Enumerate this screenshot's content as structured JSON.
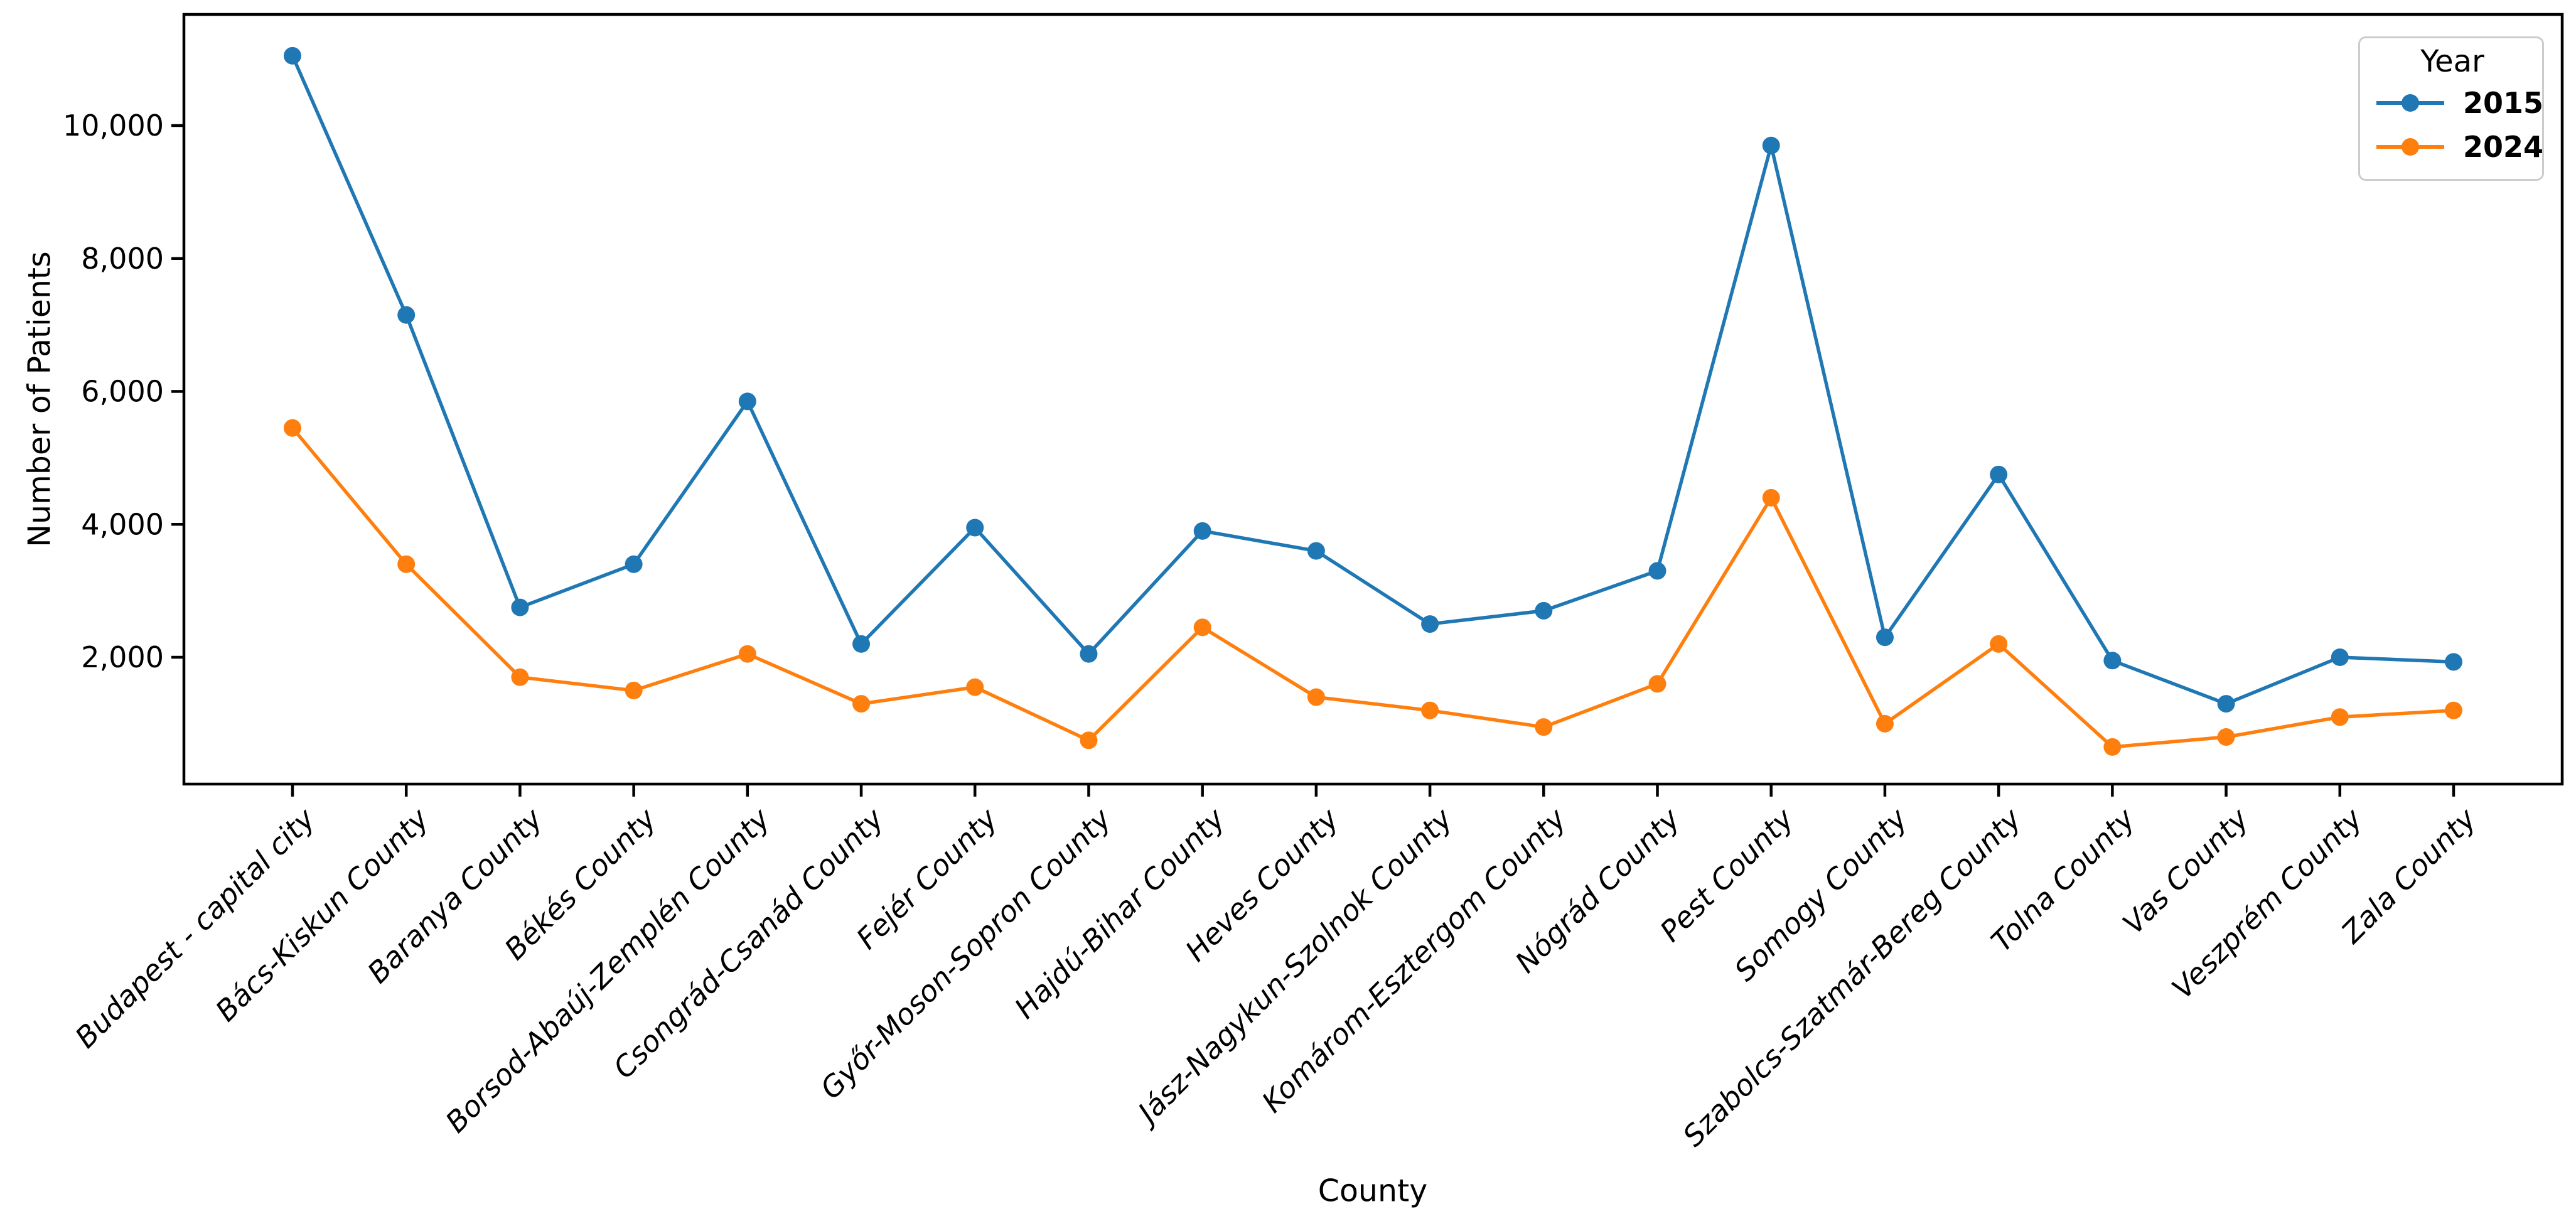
{
  "chart_data": {
    "type": "line",
    "title": "",
    "xlabel": "County",
    "ylabel": "Number of Patients",
    "grid": false,
    "legend": {
      "title": "Year",
      "position": "upper right"
    },
    "yticks": {
      "values": [
        2000,
        4000,
        6000,
        8000,
        10000
      ],
      "labels": [
        "2,000",
        "4,000",
        "6,000",
        "8,000",
        "10,000"
      ]
    },
    "ylim": [
      100,
      11670
    ],
    "categories": [
      "Budapest - capital city",
      "Bács-Kiskun County",
      "Baranya County",
      "Békés County",
      "Borsod-Abaúj-Zemplén County",
      "Csongrád-Csanád County",
      "Fejér County",
      "Győr-Moson-Sopron County",
      "Hajdú-Bihar County",
      "Heves County",
      "Jász-Nagykun-Szolnok County",
      "Komárom-Esztergom County",
      "Nógrád County",
      "Pest County",
      "Somogy County",
      "Szabolcs-Szatmár-Bereg County",
      "Tolna County",
      "Vas County",
      "Veszprém County",
      "Zala County"
    ],
    "series": [
      {
        "name": "2015",
        "color": "#1f77b4",
        "values": [
          11050,
          7150,
          2750,
          3400,
          5850,
          2200,
          3950,
          2050,
          3900,
          3600,
          2500,
          2700,
          3300,
          9700,
          2300,
          4750,
          1950,
          1300,
          2000,
          1930
        ]
      },
      {
        "name": "2024",
        "color": "#ff7f0e",
        "values": [
          5450,
          3400,
          1700,
          1500,
          2050,
          1300,
          1550,
          750,
          2450,
          1400,
          1200,
          950,
          1600,
          4400,
          1000,
          2200,
          650,
          800,
          1100,
          1200
        ]
      }
    ]
  }
}
